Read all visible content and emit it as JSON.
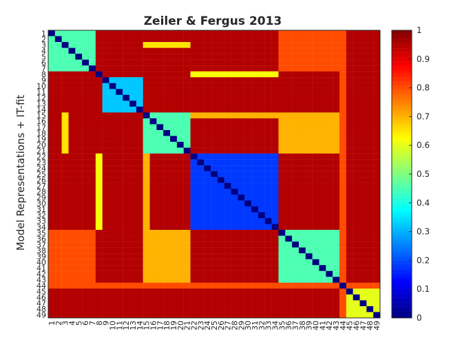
{
  "chart_data": {
    "type": "heatmap",
    "title": "Zeiler & Fergus 2013",
    "xlabel": "",
    "ylabel": "Model Representations + IT-fit",
    "size": 49,
    "x_ticks": [
      1,
      2,
      3,
      4,
      5,
      6,
      7,
      8,
      9,
      10,
      11,
      12,
      13,
      14,
      15,
      16,
      17,
      18,
      19,
      20,
      21,
      22,
      23,
      24,
      25,
      26,
      27,
      28,
      29,
      30,
      31,
      32,
      33,
      34,
      35,
      36,
      37,
      38,
      39,
      40,
      41,
      42,
      43,
      44,
      45,
      46,
      47,
      48,
      49
    ],
    "y_ticks": [
      1,
      2,
      3,
      4,
      5,
      6,
      7,
      8,
      9,
      10,
      11,
      12,
      13,
      14,
      15,
      16,
      17,
      18,
      19,
      20,
      21,
      22,
      23,
      24,
      25,
      26,
      27,
      28,
      29,
      30,
      31,
      32,
      33,
      34,
      35,
      36,
      37,
      38,
      39,
      40,
      41,
      42,
      43,
      44,
      45,
      46,
      47,
      48,
      49
    ],
    "colorbar": {
      "min": 0,
      "max": 1,
      "colormap": "jet",
      "ticks": [
        0,
        0.1,
        0.2,
        0.3,
        0.4,
        0.5,
        0.6,
        0.7,
        0.8,
        0.9,
        1
      ]
    },
    "background_value": 0.95,
    "blocks": [
      {
        "rows": [
          1,
          7
        ],
        "cols": [
          1,
          7
        ],
        "value": 0.45
      },
      {
        "rows": [
          9,
          14
        ],
        "cols": [
          9,
          14
        ],
        "value": 0.32
      },
      {
        "rows": [
          15,
          21
        ],
        "cols": [
          15,
          21
        ],
        "value": 0.45
      },
      {
        "rows": [
          22,
          34
        ],
        "cols": [
          22,
          34
        ],
        "value": 0.18
      },
      {
        "rows": [
          35,
          44
        ],
        "cols": [
          35,
          44
        ],
        "value": 0.45
      },
      {
        "rows": [
          45,
          49
        ],
        "cols": [
          45,
          49
        ],
        "value": 0.6
      },
      {
        "rows": [
          15,
          21
        ],
        "cols": [
          35,
          44
        ],
        "value": 0.7
      },
      {
        "rows": [
          35,
          44
        ],
        "cols": [
          15,
          21
        ],
        "value": 0.7
      },
      {
        "rows": [
          1,
          7
        ],
        "cols": [
          35,
          44
        ],
        "value": 0.8
      },
      {
        "rows": [
          35,
          44
        ],
        "cols": [
          1,
          7
        ],
        "value": 0.8
      }
    ],
    "lines": [
      {
        "row": 8,
        "cols": [
          22,
          34
        ],
        "value": 0.62
      },
      {
        "col": 8,
        "rows": [
          22,
          34
        ],
        "value": 0.62
      },
      {
        "row": 3,
        "cols": [
          15,
          21
        ],
        "value": 0.65
      },
      {
        "col": 3,
        "rows": [
          15,
          21
        ],
        "value": 0.65
      },
      {
        "row": 15,
        "cols": [
          22,
          34
        ],
        "value": 0.7
      },
      {
        "col": 15,
        "rows": [
          22,
          34
        ],
        "value": 0.7
      },
      {
        "row": 44,
        "cols": [
          1,
          49
        ],
        "value": 0.8
      },
      {
        "col": 44,
        "rows": [
          1,
          49
        ],
        "value": 0.8
      }
    ]
  }
}
